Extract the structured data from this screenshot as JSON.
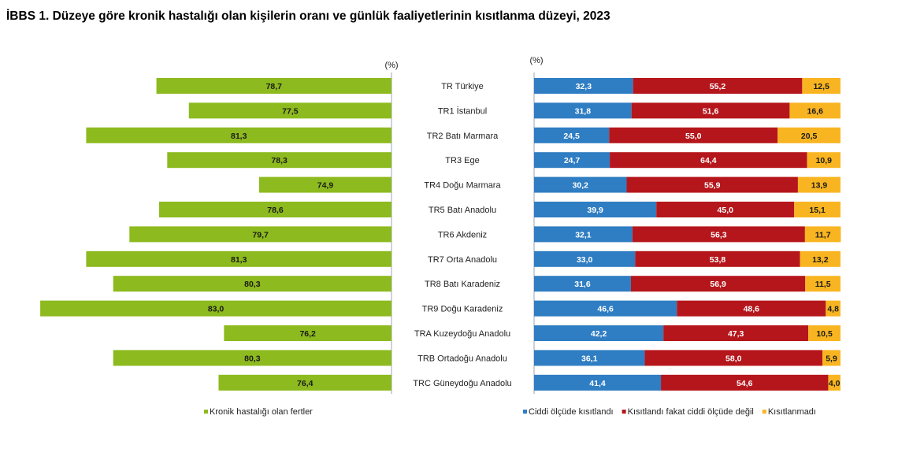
{
  "chart_data": [
    {
      "type": "bar",
      "orientation": "horizontal",
      "title": "İBBS 1. Düzeye göre kronik hastalığı olan kişilerin oranı ve günlük faaliyetlerinin kısıtlanma düzeyi, 2023",
      "unit_label": "(%)",
      "categories": [
        "TR Türkiye",
        "TR1 İstanbul",
        "TR2 Batı Marmara",
        "TR3 Ege",
        "TR4 Doğu Marmara",
        "TR5 Batı Anadolu",
        "TR6 Akdeniz",
        "TR7 Orta Anadolu",
        "TR8 Batı Karadeniz",
        "TR9 Doğu Karadeniz",
        "TRA Kuzeydoğu Anadolu",
        "TRB Ortadoğu Anadolu",
        "TRC Güneydoğu Anadolu"
      ],
      "series": [
        {
          "name": "Kronik hastalığı olan fertler",
          "color": "#8dba1e",
          "values": [
            78.7,
            77.5,
            81.3,
            78.3,
            74.9,
            78.6,
            79.7,
            81.3,
            80.3,
            83.0,
            76.2,
            80.3,
            76.4
          ],
          "labels": [
            "78,7",
            "77,5",
            "81,3",
            "78,3",
            "74,9",
            "78,6",
            "79,7",
            "81,3",
            "80,3",
            "83,0",
            "76,2",
            "80,3",
            "76,4"
          ]
        }
      ],
      "xlim": [
        70,
        84
      ],
      "direction": "right-to-left",
      "legend": "bottom",
      "grid": false
    },
    {
      "type": "bar",
      "orientation": "horizontal",
      "stacked": true,
      "unit_label": "(%)",
      "xlim": [
        0,
        100
      ],
      "legend": "bottom",
      "grid": false,
      "series": [
        {
          "name": "Ciddi ölçüde kısıtlandı",
          "color": "#2f7dc2",
          "text_color": "#ffffff",
          "values": [
            32.3,
            31.8,
            24.5,
            24.7,
            30.2,
            39.9,
            32.1,
            33.0,
            31.6,
            46.6,
            42.2,
            36.1,
            41.4
          ],
          "labels": [
            "32,3",
            "31,8",
            "24,5",
            "24,7",
            "30,2",
            "39,9",
            "32,1",
            "33,0",
            "31,6",
            "46,6",
            "42,2",
            "36,1",
            "41,4"
          ]
        },
        {
          "name": "Kısıtlandı fakat ciddi ölçüde değil",
          "color": "#b5161b",
          "text_color": "#ffffff",
          "values": [
            55.2,
            51.6,
            55.0,
            64.4,
            55.9,
            45.0,
            56.3,
            53.8,
            56.9,
            48.6,
            47.3,
            58.0,
            54.6
          ],
          "labels": [
            "55,2",
            "51,6",
            "55,0",
            "64,4",
            "55,9",
            "45,0",
            "56,3",
            "53,8",
            "56,9",
            "48,6",
            "47,3",
            "58,0",
            "54,6"
          ]
        },
        {
          "name": "Kısıtlanmadı",
          "color": "#f9b521",
          "text_color": "#1a1a1a",
          "values": [
            12.5,
            16.6,
            20.5,
            10.9,
            13.9,
            15.1,
            11.7,
            13.2,
            11.5,
            4.8,
            10.5,
            5.9,
            4.0
          ],
          "labels": [
            "12,5",
            "16,6",
            "20,5",
            "10,9",
            "13,9",
            "15,1",
            "11,7",
            "13,2",
            "11,5",
            "4,8",
            "10,5",
            "5,9",
            "4,0"
          ]
        }
      ]
    }
  ]
}
